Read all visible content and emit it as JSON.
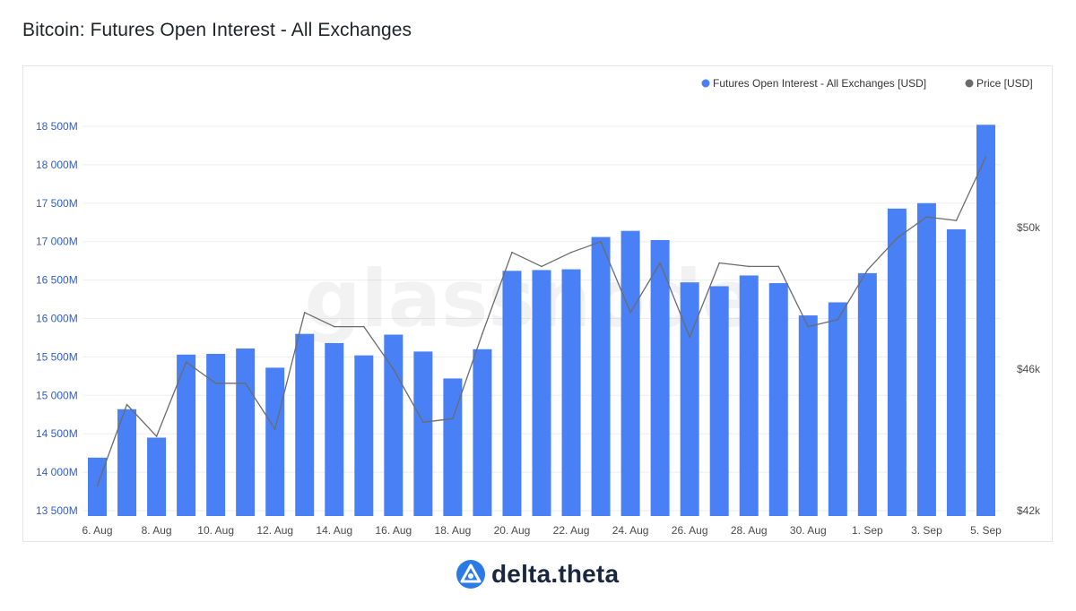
{
  "page": {
    "title": "Bitcoin: Futures Open Interest - All Exchanges"
  },
  "watermark": "glassnode",
  "footer": {
    "brand": "delta.theta"
  },
  "colors": {
    "bars": "#4a80f5",
    "price_line": "#6b6b6b",
    "left_axis_text": "#2f5ec8",
    "right_axis_text": "#4b4b4b",
    "grid": "#eceef2",
    "logo_blue": "#2c7be5"
  },
  "chart_data": {
    "type": "bar",
    "title": "",
    "categories": [
      "6. Aug",
      "7. Aug",
      "8. Aug",
      "9. Aug",
      "10. Aug",
      "11. Aug",
      "12. Aug",
      "13. Aug",
      "14. Aug",
      "15. Aug",
      "16. Aug",
      "17. Aug",
      "18. Aug",
      "19. Aug",
      "20. Aug",
      "21. Aug",
      "22. Aug",
      "23. Aug",
      "24. Aug",
      "25. Aug",
      "26. Aug",
      "27. Aug",
      "28. Aug",
      "29. Aug",
      "30. Aug",
      "31. Aug",
      "1. Sep",
      "2. Sep",
      "3. Sep",
      "4. Sep",
      "5. Sep"
    ],
    "x_tick_labels": [
      "6. Aug",
      "8. Aug",
      "10. Aug",
      "12. Aug",
      "14. Aug",
      "16. Aug",
      "18. Aug",
      "20. Aug",
      "22. Aug",
      "24. Aug",
      "26. Aug",
      "28. Aug",
      "30. Aug",
      "1. Sep",
      "3. Sep",
      "5. Sep"
    ],
    "series": [
      {
        "name": "Futures Open Interest - All Exchanges [USD]",
        "axis": "left",
        "kind": "bar",
        "values": [
          14190,
          14820,
          14450,
          15530,
          15540,
          15610,
          15360,
          15800,
          15680,
          15520,
          15790,
          15570,
          15220,
          15600,
          16620,
          16630,
          16640,
          17060,
          17140,
          17020,
          16470,
          16420,
          16560,
          16460,
          16040,
          16210,
          16590,
          17430,
          17500,
          17160,
          18520
        ]
      },
      {
        "name": "Price [USD]",
        "axis": "right",
        "kind": "line",
        "values": [
          42700,
          45000,
          44100,
          46200,
          45600,
          45600,
          44300,
          47600,
          47200,
          47200,
          46000,
          44500,
          44600,
          47000,
          49300,
          48900,
          49300,
          49600,
          47600,
          49000,
          46900,
          49000,
          48900,
          48900,
          47200,
          47400,
          48800,
          49700,
          50300,
          50200,
          52000
        ]
      }
    ],
    "y_left": {
      "ticks": [
        "13 500M",
        "14 000M",
        "14 500M",
        "15 000M",
        "15 500M",
        "16 000M",
        "16 500M",
        "17 000M",
        "17 500M",
        "18 000M",
        "18 500M"
      ],
      "range": [
        13500,
        18500
      ]
    },
    "y_right": {
      "ticks": [
        "$42k",
        "$46k",
        "$50k"
      ],
      "range": [
        42000,
        50000
      ]
    },
    "legend_position": "top-right",
    "grid": true
  }
}
